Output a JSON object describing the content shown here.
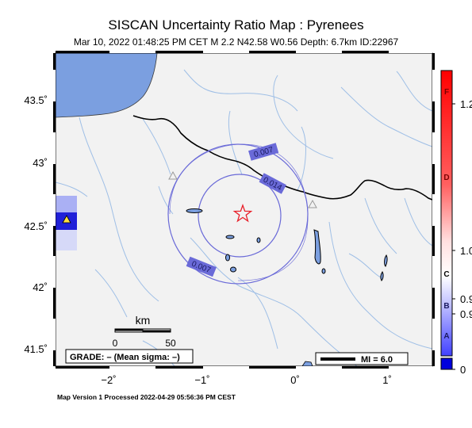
{
  "header": {
    "title": "SISCAN Uncertainty Ratio Map : Pyrenees",
    "subtitle": "Mar 10, 2022 01:48:25 PM CET   M 2.2   N42.58 W0.56   Depth: 6.7km   ID:22967"
  },
  "map": {
    "lat_ticks": [
      "43.5˚",
      "43˚",
      "42.5˚",
      "42˚",
      "41.5˚"
    ],
    "lon_ticks": [
      "−2˚",
      "−1˚",
      "0˚",
      "1˚"
    ],
    "contour_labels": [
      "0.007",
      "0.014",
      "0.007"
    ],
    "scale_bar": {
      "title": "km",
      "start": "0",
      "end": "50"
    },
    "grade_box": "GRADE: – (Mean sigma: –)",
    "mi_legend": "MI = 6.0",
    "colors": {
      "sea": "#7b9fe0",
      "land": "#f2f2f2",
      "contour": "#6a6ad8",
      "rivers": "#9fbfe6",
      "epicenter": "#e8202a"
    }
  },
  "colorbar": {
    "tick_values": [
      "1.2",
      "1.0",
      "0.9",
      "0.9",
      "0"
    ],
    "grade_letters": [
      "F",
      "D",
      "C",
      "B",
      "A"
    ]
  },
  "footer": {
    "processed": "Map Version 1 Processed 2022-04-29 05:56:36 PM CEST"
  }
}
